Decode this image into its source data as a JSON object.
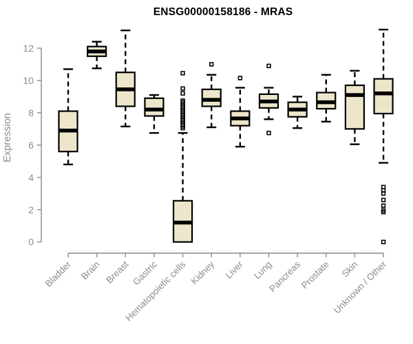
{
  "chart_data": {
    "type": "boxplot",
    "title": "ENSG00000158186 - MRAS",
    "xlabel": "",
    "ylabel": "Expression",
    "ylim": [
      0,
      12
    ],
    "yticks": [
      0,
      2,
      4,
      6,
      8,
      10,
      12
    ],
    "grid": false,
    "legend": "none",
    "colors": {
      "box_fill": "#EDE6CA",
      "box_stroke": "#000000",
      "axis": "#898989",
      "tick_label": "#8C8C8C",
      "title": "#000000",
      "background": "#FFFFFF"
    },
    "categories": [
      "Bladder",
      "Brain",
      "Breast",
      "Gastric",
      "Hematopoietic cells",
      "Kidney",
      "Liver",
      "Lung",
      "Pancreas",
      "Prostate",
      "Skin",
      "Unknown / Other"
    ],
    "series": [
      {
        "name": "Bladder",
        "whislo": 4.8,
        "q1": 5.6,
        "med": 6.9,
        "q3": 8.1,
        "whishi": 10.7,
        "outliers": []
      },
      {
        "name": "Brain",
        "whislo": 10.75,
        "q1": 11.5,
        "med": 11.8,
        "q3": 12.1,
        "whishi": 12.4,
        "outliers": []
      },
      {
        "name": "Breast",
        "whislo": 7.15,
        "q1": 8.4,
        "med": 9.45,
        "q3": 10.5,
        "whishi": 13.1,
        "outliers": []
      },
      {
        "name": "Gastric",
        "whislo": 6.75,
        "q1": 7.8,
        "med": 8.2,
        "q3": 8.9,
        "whishi": 9.1,
        "outliers": []
      },
      {
        "name": "Hematopoietic cells",
        "whislo": 0,
        "q1": 0,
        "med": 1.2,
        "q3": 2.55,
        "whishi": 6.75,
        "outliers": [
          10.45,
          9.5,
          9.2,
          8.75,
          8.65,
          8.55,
          8.45,
          8.35,
          8.25,
          8.15,
          8.05,
          7.95,
          7.85,
          7.75,
          7.65,
          7.55,
          7.45,
          7.35,
          7.25,
          7.15,
          7.05
        ]
      },
      {
        "name": "Kidney",
        "whislo": 7.1,
        "q1": 8.4,
        "med": 8.8,
        "q3": 9.45,
        "whishi": 10.35,
        "outliers": [
          11.0
        ]
      },
      {
        "name": "Liver",
        "whislo": 5.9,
        "q1": 7.2,
        "med": 7.65,
        "q3": 8.1,
        "whishi": 9.55,
        "outliers": [
          10.15
        ]
      },
      {
        "name": "Lung",
        "whislo": 7.6,
        "q1": 8.3,
        "med": 8.7,
        "q3": 9.15,
        "whishi": 9.55,
        "outliers": [
          10.9,
          6.75
        ]
      },
      {
        "name": "Pancreas",
        "whislo": 7.05,
        "q1": 7.75,
        "med": 8.2,
        "q3": 8.65,
        "whishi": 9.0,
        "outliers": []
      },
      {
        "name": "Prostate",
        "whislo": 7.45,
        "q1": 8.25,
        "med": 8.65,
        "q3": 9.25,
        "whishi": 10.35,
        "outliers": []
      },
      {
        "name": "Skin",
        "whislo": 6.05,
        "q1": 7.0,
        "med": 9.1,
        "q3": 9.7,
        "whishi": 10.6,
        "outliers": []
      },
      {
        "name": "Unknown / Other",
        "whislo": 4.9,
        "q1": 7.95,
        "med": 9.2,
        "q3": 10.1,
        "whishi": 13.15,
        "outliers": [
          3.4,
          3.2,
          3.0,
          2.6,
          2.25,
          1.95,
          1.85,
          0.0
        ]
      }
    ]
  }
}
